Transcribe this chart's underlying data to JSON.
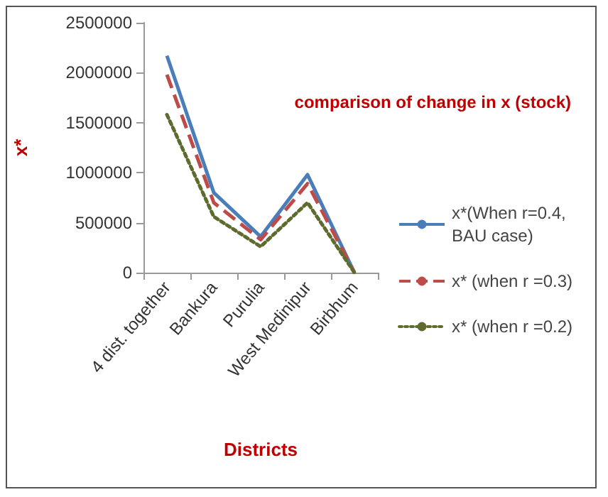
{
  "chart_data": {
    "type": "line",
    "title": "comparison of change in x (stock)",
    "xlabel": "Districts",
    "ylabel": "x*",
    "categories": [
      "4 dist. together",
      "Bankura",
      "Purulia",
      "West Medinipur",
      "Birbhum"
    ],
    "series": [
      {
        "name": "x*(When r=0.4,BAU case)",
        "color": "#4a7ebb",
        "values": [
          2170000,
          800000,
          360000,
          980000,
          0
        ],
        "line_style": "solid"
      },
      {
        "name": "x* (when r =0.3)",
        "color": "#be4b48",
        "values": [
          1980000,
          700000,
          330000,
          890000,
          0
        ],
        "line_style": "dashed"
      },
      {
        "name": "x* (when r =0.2)",
        "color": "#5e6b2f",
        "values": [
          1580000,
          560000,
          260000,
          700000,
          0
        ],
        "line_style": "dotted"
      }
    ],
    "ylim": [
      0,
      2500000
    ],
    "yticks": [
      0,
      500000,
      1000000,
      1500000,
      2000000,
      2500000
    ],
    "grid": false,
    "legend": "right",
    "marker": "none"
  }
}
